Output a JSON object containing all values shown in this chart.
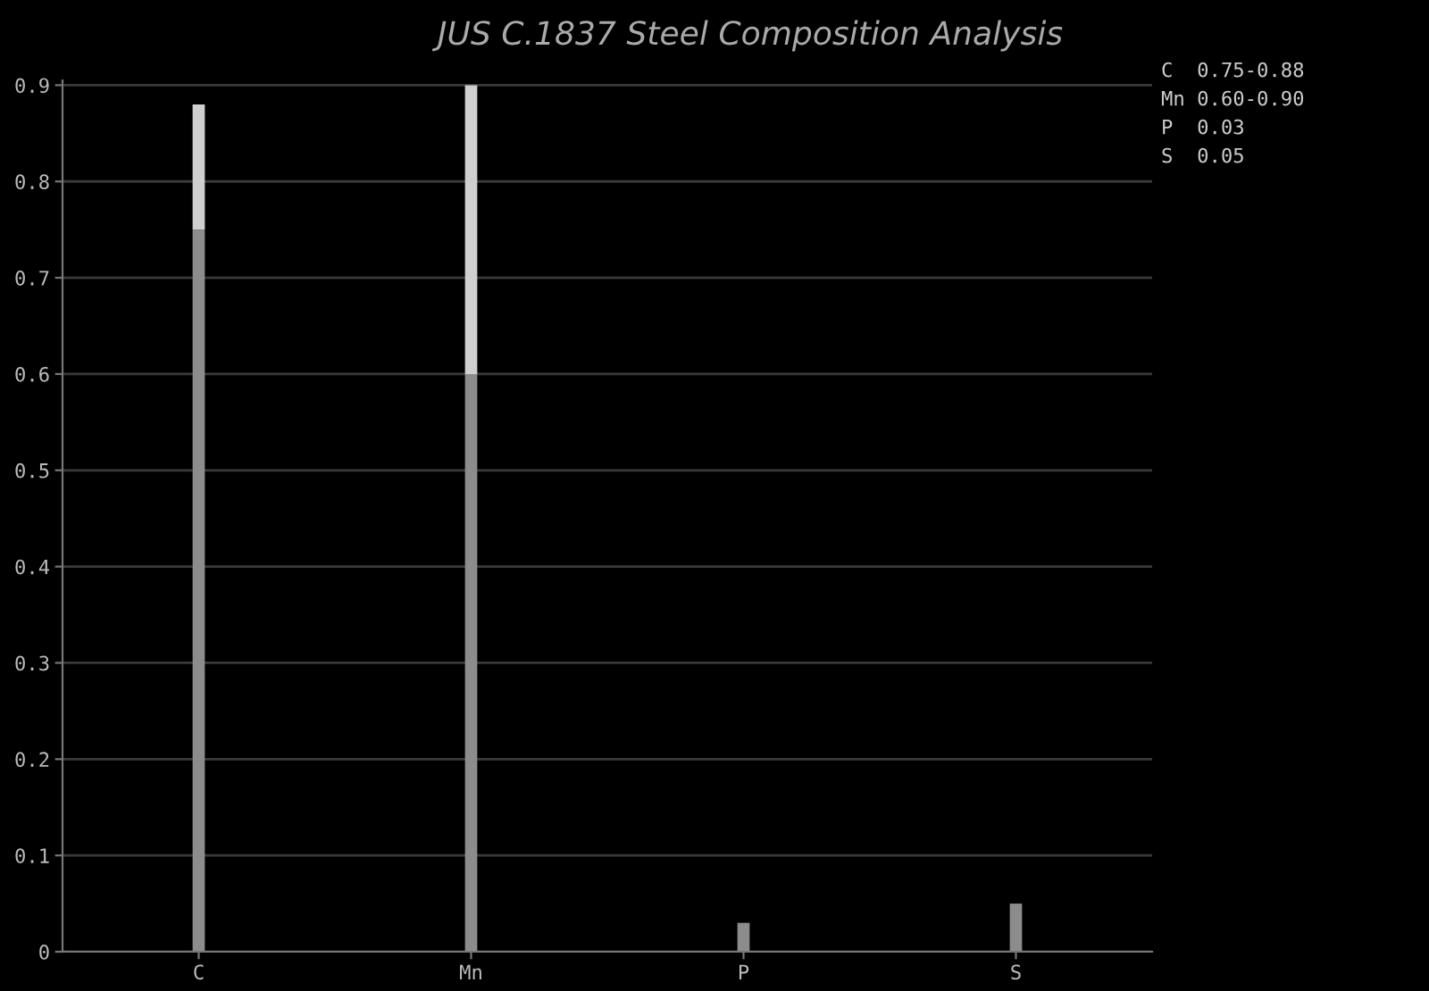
{
  "chart_data": {
    "type": "bar",
    "title": "JUS C.1837 Steel Composition Analysis",
    "categories": [
      "C",
      "Mn",
      "P",
      "S"
    ],
    "stacked": true,
    "series": [
      {
        "color": "#8c8c8c",
        "values": [
          0.75,
          0.6,
          0.03,
          0.05
        ]
      },
      {
        "color": "#cfcfcf",
        "values": [
          0.13,
          0.3,
          null,
          null
        ]
      }
    ],
    "ylim": [
      0,
      0.905
    ],
    "yticks": [
      0,
      0.1,
      0.2,
      0.3,
      0.4,
      0.5,
      0.6,
      0.7,
      0.8,
      0.9
    ],
    "grid": "y",
    "annotations": [
      "C  0.75-0.88",
      "Mn 0.60-0.90",
      "P  0.03",
      "S  0.05"
    ]
  }
}
